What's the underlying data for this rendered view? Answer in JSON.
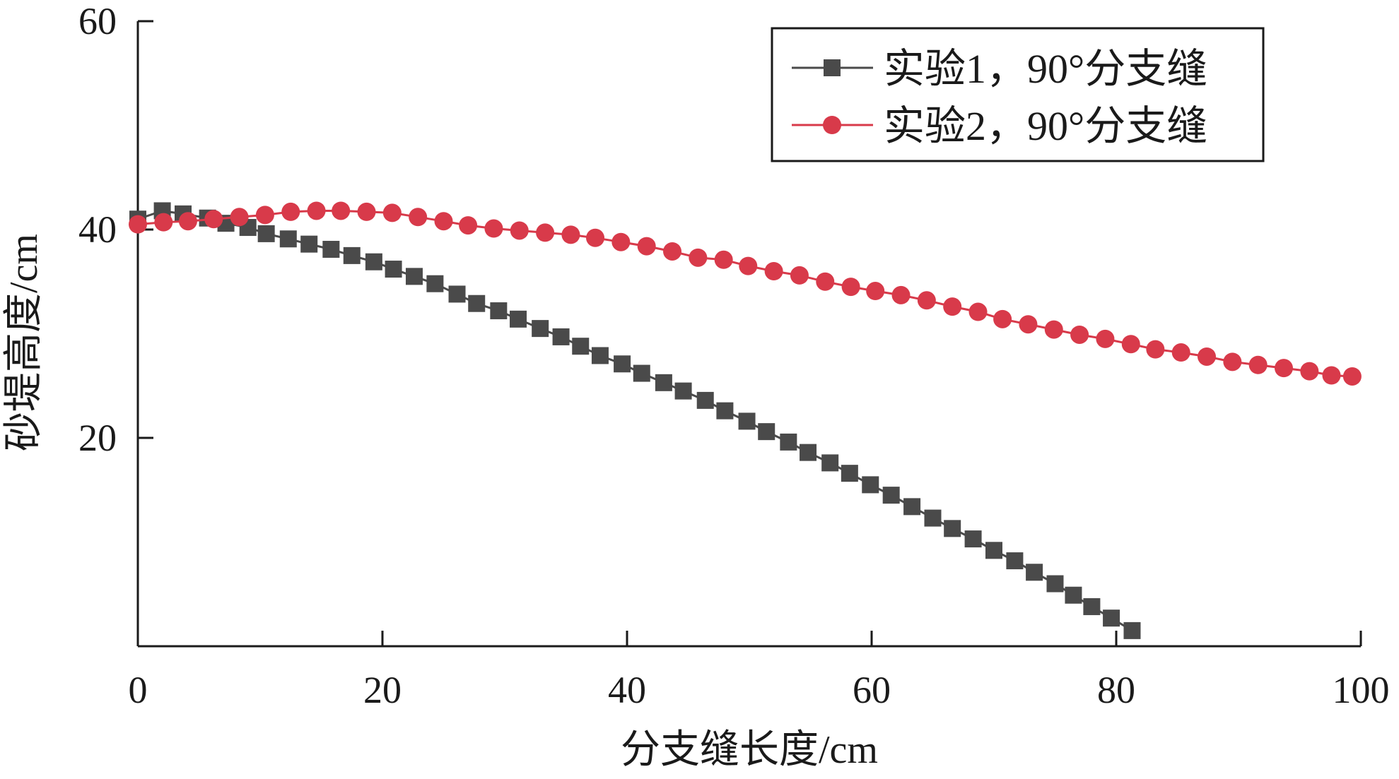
{
  "chart_data": {
    "type": "line",
    "xlabel": "分支缝长度/cm",
    "ylabel": "砂堤高度/cm",
    "xlim": [
      0,
      100
    ],
    "ylim": [
      0,
      60
    ],
    "xticks": [
      "0",
      "20",
      "40",
      "60",
      "80",
      "100"
    ],
    "yticks": [
      "20",
      "40",
      "60"
    ],
    "xtick_values": [
      0,
      20,
      40,
      60,
      80,
      100
    ],
    "ytick_values": [
      20,
      40,
      60
    ],
    "grid": false,
    "legend_position": "top-right",
    "series": [
      {
        "name": "实验1，90°分支缝",
        "color": "#4a4a4a",
        "marker": "square",
        "x": [
          0,
          2,
          3.7,
          5.7,
          7.2,
          9,
          10.5,
          12.3,
          14,
          15.8,
          17.5,
          19.3,
          20.9,
          22.6,
          24.3,
          26.1,
          27.7,
          29.5,
          31.1,
          32.9,
          34.6,
          36.2,
          37.8,
          39.6,
          41.2,
          43,
          44.6,
          46.4,
          48,
          49.8,
          51.4,
          53.2,
          54.8,
          56.6,
          58.2,
          59.9,
          61.6,
          63.3,
          65,
          66.6,
          68.3,
          70,
          71.7,
          73.3,
          75,
          76.5,
          78,
          79.6,
          81.3
        ],
        "y": [
          41,
          41.8,
          41.5,
          41.1,
          40.6,
          40.2,
          39.6,
          39.1,
          38.6,
          38.1,
          37.5,
          36.9,
          36.2,
          35.5,
          34.8,
          33.8,
          32.9,
          32.2,
          31.4,
          30.5,
          29.7,
          28.8,
          27.9,
          27.1,
          26.2,
          25.3,
          24.5,
          23.6,
          22.6,
          21.6,
          20.6,
          19.6,
          18.6,
          17.6,
          16.6,
          15.5,
          14.5,
          13.4,
          12.3,
          11.3,
          10.3,
          9.2,
          8.2,
          7.1,
          6,
          4.9,
          3.8,
          2.7,
          1.5
        ]
      },
      {
        "name": "实验2，90°分支缝",
        "color": "#d83a4a",
        "marker": "circle",
        "x": [
          0,
          2.1,
          4.1,
          6.2,
          8.3,
          10.4,
          12.5,
          14.6,
          16.6,
          18.7,
          20.8,
          22.9,
          25,
          27,
          29.1,
          31.2,
          33.3,
          35.4,
          37.4,
          39.5,
          41.6,
          43.7,
          45.8,
          47.9,
          49.9,
          52,
          54.1,
          56.2,
          58.3,
          60.3,
          62.4,
          64.5,
          66.6,
          68.7,
          70.7,
          72.8,
          74.9,
          77,
          79.1,
          81.2,
          83.2,
          85.3,
          87.4,
          89.5,
          91.6,
          93.7,
          95.8,
          97.6,
          99.3
        ],
        "y": [
          40.5,
          40.7,
          40.8,
          41,
          41.2,
          41.4,
          41.7,
          41.8,
          41.8,
          41.7,
          41.6,
          41.2,
          40.8,
          40.4,
          40.1,
          39.9,
          39.7,
          39.5,
          39.2,
          38.8,
          38.4,
          37.9,
          37.3,
          37.1,
          36.5,
          36,
          35.6,
          35,
          34.5,
          34.1,
          33.7,
          33.2,
          32.6,
          32.1,
          31.4,
          30.9,
          30.4,
          29.9,
          29.5,
          29,
          28.5,
          28.2,
          27.8,
          27.3,
          27,
          26.7,
          26.4,
          26,
          25.9
        ]
      }
    ]
  }
}
